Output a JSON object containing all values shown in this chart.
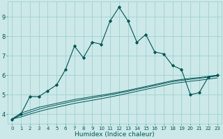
{
  "xlabel": "Humidex (Indice chaleur)",
  "bg_color": "#cce8e8",
  "grid_color": "#99cccc",
  "line_color": "#005555",
  "x_ticks": [
    0,
    1,
    2,
    3,
    4,
    5,
    6,
    7,
    8,
    9,
    10,
    11,
    12,
    13,
    14,
    15,
    16,
    17,
    18,
    19,
    20,
    21,
    22,
    23
  ],
  "y_ticks": [
    4,
    5,
    6,
    7,
    8,
    9
  ],
  "xlim": [
    -0.5,
    23.5
  ],
  "ylim": [
    3.5,
    9.8
  ],
  "main_y": [
    3.7,
    4.0,
    4.9,
    4.9,
    5.2,
    5.5,
    6.3,
    7.5,
    6.9,
    7.7,
    7.6,
    8.8,
    9.5,
    8.8,
    7.7,
    8.1,
    7.2,
    7.1,
    6.5,
    6.3,
    5.0,
    5.1,
    5.9,
    6.0
  ],
  "line1_y": [
    3.75,
    4.05,
    4.2,
    4.35,
    4.45,
    4.55,
    4.65,
    4.75,
    4.82,
    4.9,
    4.97,
    5.05,
    5.13,
    5.22,
    5.32,
    5.42,
    5.52,
    5.62,
    5.72,
    5.78,
    5.84,
    5.88,
    5.94,
    6.0
  ],
  "line2_y": [
    3.75,
    3.95,
    4.1,
    4.25,
    4.37,
    4.47,
    4.57,
    4.67,
    4.75,
    4.83,
    4.91,
    4.99,
    5.08,
    5.17,
    5.27,
    5.37,
    5.47,
    5.57,
    5.67,
    5.73,
    5.79,
    5.84,
    5.9,
    5.96
  ],
  "line3_y": [
    3.75,
    3.85,
    4.0,
    4.13,
    4.25,
    4.35,
    4.45,
    4.55,
    4.63,
    4.71,
    4.79,
    4.88,
    4.97,
    5.07,
    5.17,
    5.27,
    5.37,
    5.47,
    5.57,
    5.63,
    5.69,
    5.74,
    5.8,
    5.86
  ],
  "tick_fontsize": 5.0,
  "xlabel_fontsize": 6.5
}
